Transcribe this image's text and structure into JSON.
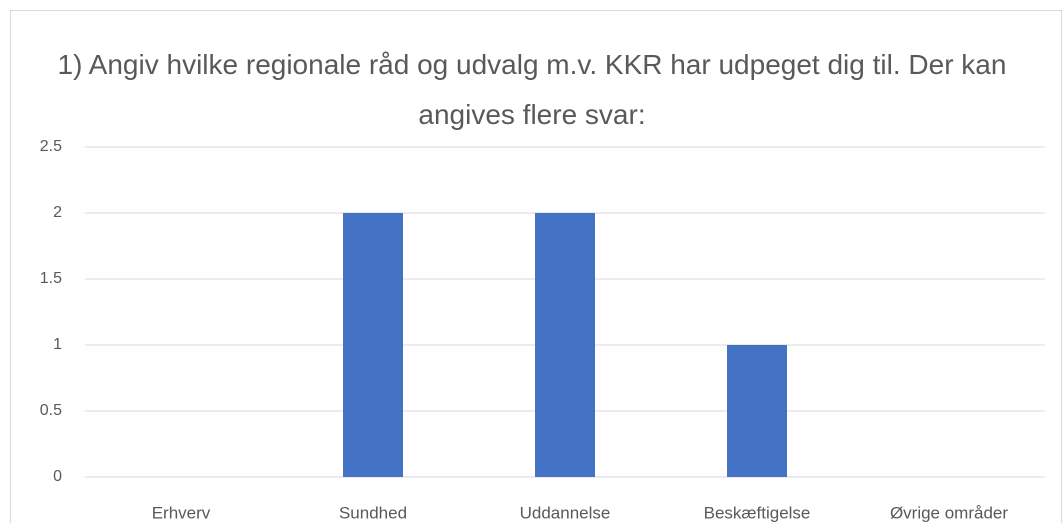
{
  "chart_data": {
    "type": "bar",
    "title": "1) Angiv hvilke regionale råd og udvalg m.v. KKR har udpeget dig til. Der kan angives flere svar:",
    "categories": [
      "Erhverv",
      "Sundhed",
      "Uddannelse",
      "Beskæftigelse",
      "Øvrige områder"
    ],
    "values": [
      0,
      2,
      2,
      1,
      0
    ],
    "color": "#4472c4",
    "ylim": [
      0,
      2.5
    ],
    "yticks": [
      0,
      0.5,
      1,
      1.5,
      2,
      2.5
    ],
    "grid": true
  }
}
